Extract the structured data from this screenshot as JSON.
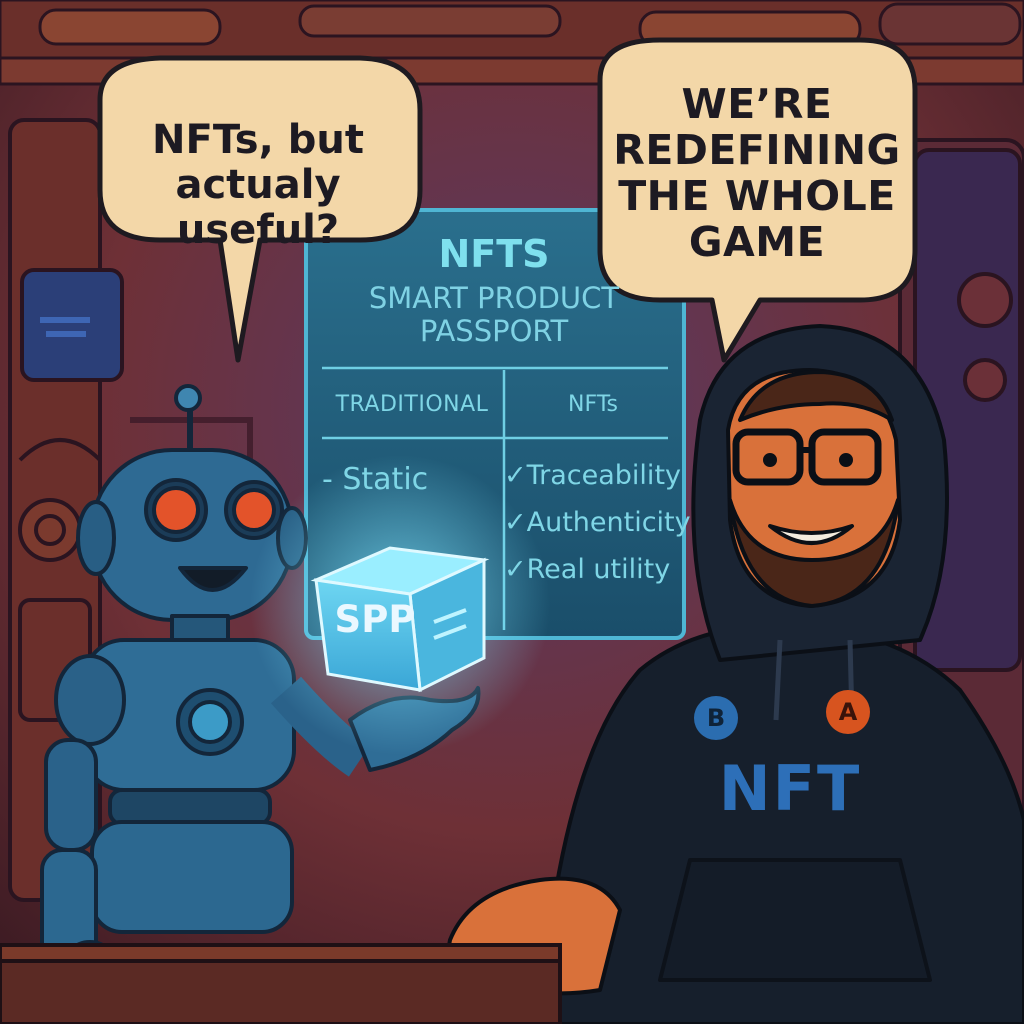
{
  "bubbles": {
    "left": "NFTs, but actualy useful?",
    "right": "WE’RE REDEFINING THE WHOLE GAME"
  },
  "board": {
    "title": "NFTS",
    "subtitle": "SMART PRODUCT PASSPORT",
    "columns": [
      "TRADITIONAL",
      "NFTs"
    ],
    "traditional_items": [
      "- Static"
    ],
    "nft_items": [
      "✓Traceability",
      "✓Authenticity",
      "✓Real utility"
    ]
  },
  "cube": {
    "label": "SPP"
  },
  "hoodie": {
    "text": "NFT",
    "badges": [
      "B",
      "A"
    ]
  },
  "colors": {
    "wall_warm": "#8a3c2a",
    "wall_dark": "#2f2140",
    "screen": "#1f5b7a",
    "screen_text": "#7fd6e6",
    "robot": "#2e6a93",
    "robot_eye": "#e3532a",
    "hoodie": "#161f2c",
    "bubble": "#f3d7a8"
  }
}
